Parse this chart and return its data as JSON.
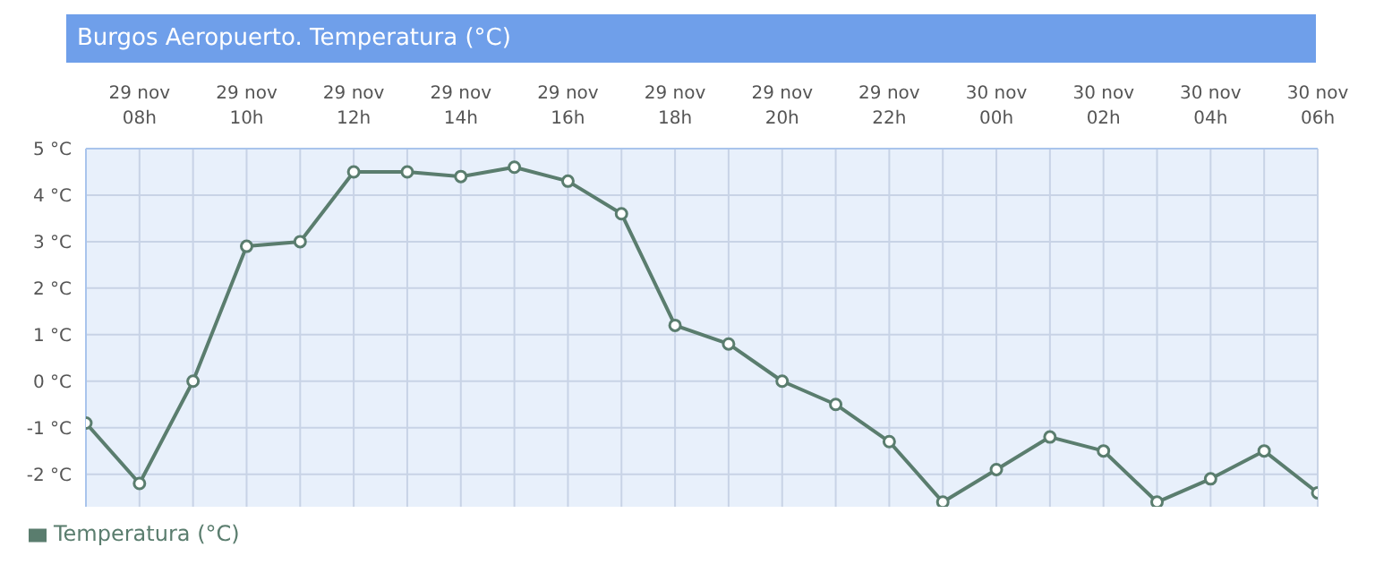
{
  "chart_data": {
    "type": "line",
    "title": "Burgos Aeropuerto. Temperatura (°C)",
    "categories": [
      null,
      "29 nov\n08h",
      null,
      "29 nov\n10h",
      null,
      "29 nov\n12h",
      null,
      "29 nov\n14h",
      null,
      "29 nov\n16h",
      null,
      "29 nov\n18h",
      null,
      "29 nov\n20h",
      null,
      "29 nov\n22h",
      null,
      "30 nov\n00h",
      null,
      "30 nov\n02h",
      null,
      "30 nov\n04h",
      null,
      "30 nov\n06h"
    ],
    "series": [
      {
        "name": "Temperatura (°C)",
        "color": "#5a7d6e",
        "values": [
          -0.9,
          -2.2,
          0,
          2.9,
          3.0,
          4.5,
          4.5,
          4.4,
          4.6,
          4.3,
          3.6,
          1.2,
          0.8,
          0,
          -0.5,
          -1.3,
          -2.6,
          -1.9,
          -1.2,
          -1.5,
          -2.6,
          -2.1,
          -1.5,
          -2.4
        ]
      }
    ],
    "ylim": [
      -2.7,
      5
    ],
    "yticks": [
      {
        "value": -2,
        "label": "-2 °C"
      },
      {
        "value": -1,
        "label": "-1 °C"
      },
      {
        "value": 0,
        "label": "0 °C"
      },
      {
        "value": 1,
        "label": "1 °C"
      },
      {
        "value": 2,
        "label": "2 °C"
      },
      {
        "value": 3,
        "label": "3 °C"
      },
      {
        "value": 4,
        "label": "4 °C"
      },
      {
        "value": 5,
        "label": "5 °C"
      }
    ],
    "grid": true,
    "legend": "bottom left",
    "marker": "circle",
    "line_style": "solid"
  }
}
